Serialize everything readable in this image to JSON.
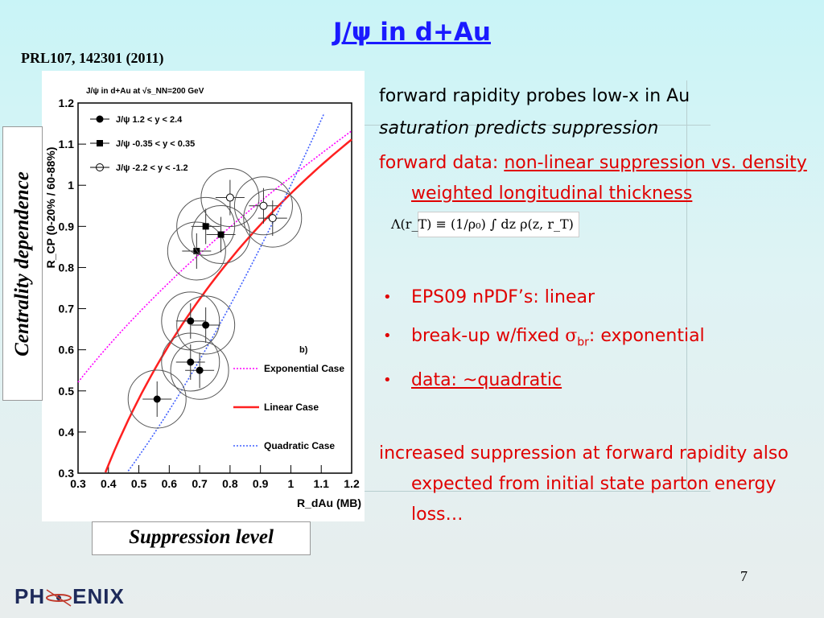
{
  "title": "J/ψ in d+Au",
  "reference": "PRL107, 142301 (2011)",
  "labels": {
    "vertical": "Centrality dependence",
    "horizontal": "Suppression level"
  },
  "text": {
    "line1": "forward rapidity probes low-x in Au",
    "line2": "saturation predicts suppression",
    "line3_prefix": "forward data: ",
    "line3_underlined": "non-linear suppression vs. density weighted longitudinal thickness",
    "formula": "Λ(r_T) ≡ (1/ρ₀) ∫ dz ρ(z, r_T)",
    "bullets": [
      {
        "pre": "EPS09 nPDF’s: linear",
        "sym": "",
        "sub": "",
        "post": ""
      },
      {
        "pre": "break-up w/fixed ",
        "sym": "σ",
        "sub": "br",
        "post": ": exponential"
      },
      {
        "pre": "data: ~quadratic",
        "sym": "",
        "sub": "",
        "post": "",
        "underline": true
      }
    ],
    "closing": "increased suppression at forward rapidity also expected from initial state parton energy loss…"
  },
  "page_number": "7",
  "logo": {
    "left": "PH",
    "right": "ENIX"
  },
  "colors": {
    "title": "#1a1aff",
    "red": "#e00000",
    "exponential": "#ff00ff",
    "linear": "#ff2020",
    "quadratic": "#4060ff"
  },
  "chart_data": {
    "type": "scatter",
    "title": "J/ψ in d+Au at √s_NN=200 GeV",
    "xlabel": "R_dAu (MB)",
    "ylabel": "R_CP (0-20% / 60-88%)",
    "xlim": [
      0.3,
      1.2
    ],
    "ylim": [
      0.3,
      1.2
    ],
    "xticks": [
      "0.3",
      "0.4",
      "0.5",
      "0.6",
      "0.7",
      "0.8",
      "0.9",
      "1",
      "1.1",
      "1.2"
    ],
    "yticks": [
      "0.3",
      "0.4",
      "0.5",
      "0.6",
      "0.7",
      "0.8",
      "0.9",
      "1",
      "1.1",
      "1.2"
    ],
    "panel_label": "b)",
    "series": [
      {
        "name": "J/ψ 1.2 < y < 2.4",
        "marker": "circle-filled",
        "points": [
          [
            0.56,
            0.48
          ],
          [
            0.67,
            0.67
          ],
          [
            0.72,
            0.66
          ],
          [
            0.67,
            0.57
          ],
          [
            0.7,
            0.55
          ]
        ]
      },
      {
        "name": "J/ψ -0.35 < y < 0.35",
        "marker": "square-filled",
        "points": [
          [
            0.69,
            0.84
          ],
          [
            0.72,
            0.9
          ],
          [
            0.77,
            0.88
          ]
        ]
      },
      {
        "name": "J/ψ -2.2 < y < -1.2",
        "marker": "circle-open",
        "points": [
          [
            0.8,
            0.97
          ],
          [
            0.91,
            0.95
          ],
          [
            0.94,
            0.92
          ]
        ]
      }
    ],
    "curves": [
      {
        "name": "Exponential Case",
        "style": "dotted",
        "color": "#ff00ff"
      },
      {
        "name": "Linear Case",
        "style": "solid",
        "color": "#ff2020"
      },
      {
        "name": "Quadratic Case",
        "style": "dotted",
        "color": "#4060ff"
      }
    ]
  }
}
